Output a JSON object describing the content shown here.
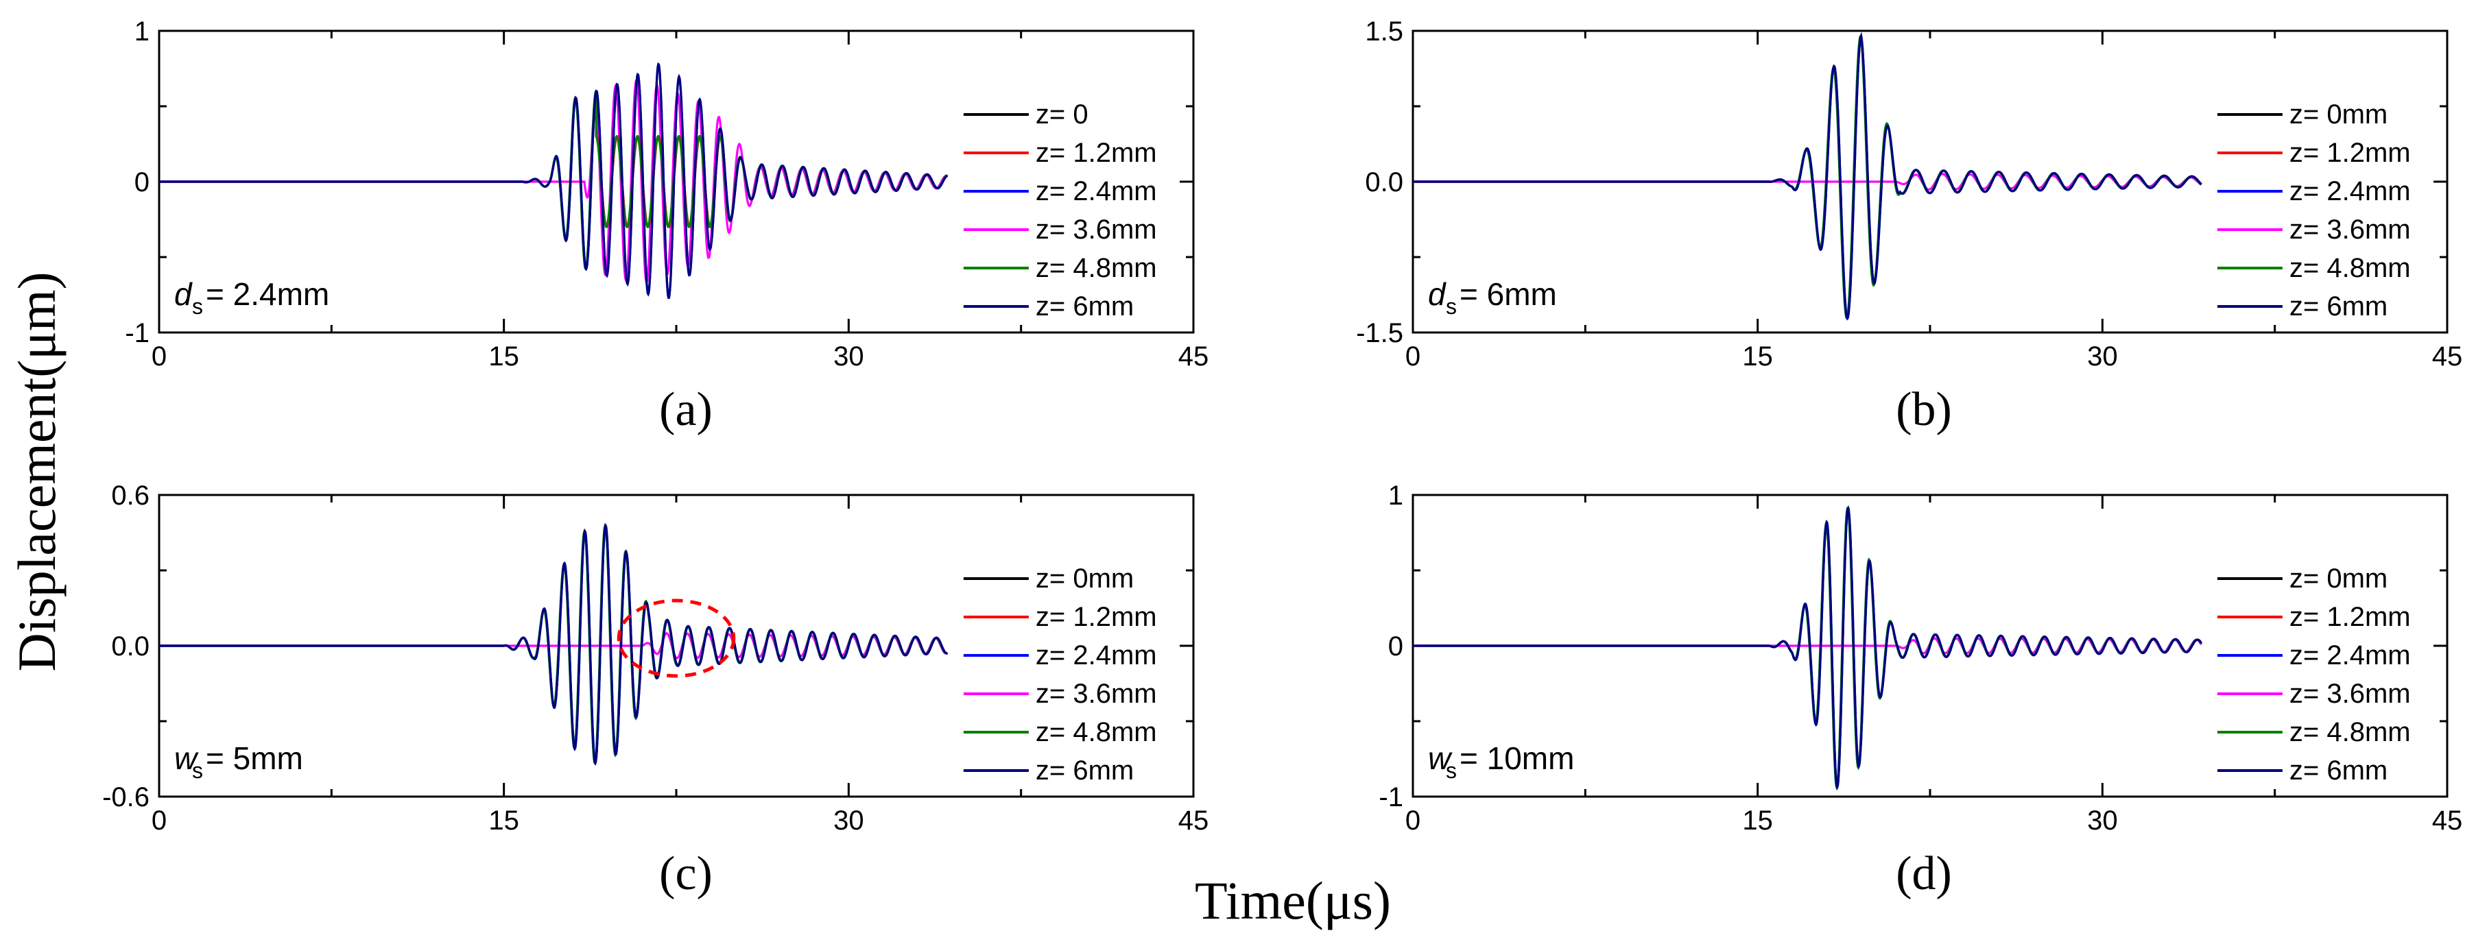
{
  "figure": {
    "ylabel": "Displacement(μm)",
    "xlabel": "Time(μs)"
  },
  "chart_data": [
    {
      "id": "a",
      "type": "line",
      "panel_label": "(a)",
      "param_symbol": "d",
      "param_sub": "s",
      "param_value": "= 2.4mm",
      "xlim": [
        0,
        45
      ],
      "ylim": [
        -1,
        1
      ],
      "xticks": [
        "0",
        "15",
        "30",
        "45"
      ],
      "yticks": [
        "-1",
        "0",
        "1"
      ],
      "legend_position": "right",
      "legend": [
        "z= 0",
        "z= 1.2mm",
        "z= 2.4mm",
        "z= 3.6mm",
        "z= 4.8mm",
        "z= 6mm"
      ],
      "series_colors": [
        "#000000",
        "#ff0000",
        "#0000ff",
        "#ff00ff",
        "#008000",
        "#000080"
      ],
      "wave": {
        "t0": 17.0,
        "t_end": 34.3,
        "period": 0.9,
        "peak": 0.8,
        "envelope": [
          [
            15.8,
            0.0
          ],
          [
            17.0,
            0.04
          ],
          [
            18.0,
            0.55
          ],
          [
            20.0,
            0.65
          ],
          [
            22.0,
            0.8
          ],
          [
            23.5,
            0.55
          ],
          [
            25.5,
            0.12
          ],
          [
            34.3,
            0.04
          ]
        ],
        "alt_amp": 0.68,
        "alt_env": [
          [
            18.5,
            0.0
          ],
          [
            19.0,
            0.6
          ],
          [
            21.0,
            0.68
          ],
          [
            24.0,
            0.5
          ],
          [
            26.0,
            0.1
          ],
          [
            34.3,
            0.04
          ]
        ],
        "alt_phase": 0.45,
        "mid_amp": 0.3
      }
    },
    {
      "id": "b",
      "type": "line",
      "panel_label": "(b)",
      "param_symbol": "d",
      "param_sub": "s",
      "param_value": "= 6mm",
      "xlim": [
        0,
        45
      ],
      "ylim": [
        -1.5,
        1.5
      ],
      "xticks": [
        "0",
        "15",
        "30",
        "45"
      ],
      "yticks": [
        "-1.5",
        "0.0",
        "1.5"
      ],
      "legend_position": "right",
      "legend": [
        "z= 0mm",
        "z= 1.2mm",
        "z= 2.4mm",
        "z= 3.6mm",
        "z= 4.8mm",
        "z= 6mm"
      ],
      "series_colors": [
        "#000000",
        "#ff0000",
        "#0000ff",
        "#ff00ff",
        "#008000",
        "#000080"
      ],
      "wave": {
        "t0": 16.8,
        "t_end": 34.3,
        "period": 1.2,
        "peak": 1.5,
        "envelope": [
          [
            15.5,
            0.0
          ],
          [
            16.5,
            0.05
          ],
          [
            17.5,
            0.5
          ],
          [
            18.5,
            1.3
          ],
          [
            19.5,
            1.45
          ],
          [
            20.5,
            0.7
          ],
          [
            21.2,
            0.12
          ],
          [
            34.3,
            0.05
          ]
        ],
        "alt_amp": 0.08,
        "alt_env": [
          [
            21.0,
            0.0
          ],
          [
            22.0,
            0.08
          ],
          [
            34.3,
            0.04
          ]
        ],
        "alt_phase": 0.3,
        "mid_amp": 0.05
      }
    },
    {
      "id": "c",
      "type": "line",
      "panel_label": "(c)",
      "param_symbol": "w",
      "param_sub": "s",
      "param_value": "= 5mm",
      "xlim": [
        0,
        45
      ],
      "ylim": [
        -0.6,
        0.6
      ],
      "xticks": [
        "0",
        "15",
        "30",
        "45"
      ],
      "yticks": [
        "-0.6",
        "0.0",
        "0.6"
      ],
      "legend_position": "right",
      "legend": [
        "z= 0mm",
        "z= 1.2mm",
        "z= 2.4mm",
        "z= 3.6mm",
        "z= 4.8mm",
        "z= 6mm"
      ],
      "series_colors": [
        "#000000",
        "#ff0000",
        "#0000ff",
        "#ff00ff",
        "#008000",
        "#000080"
      ],
      "annotation": {
        "shape": "dashed-ellipse",
        "color": "#ff0000",
        "center_x": 22.5,
        "center_y": 0.03,
        "rx": 2.5,
        "ry": 0.15
      },
      "wave": {
        "t0": 16.5,
        "t_end": 34.3,
        "period": 0.9,
        "peak": 0.48,
        "envelope": [
          [
            15.0,
            0.0
          ],
          [
            16.3,
            0.05
          ],
          [
            17.2,
            0.25
          ],
          [
            18.3,
            0.45
          ],
          [
            19.5,
            0.48
          ],
          [
            20.5,
            0.35
          ],
          [
            21.3,
            0.15
          ],
          [
            22.5,
            0.08
          ],
          [
            34.3,
            0.03
          ]
        ],
        "alt_amp": 0.05,
        "alt_env": [
          [
            21.0,
            0.0
          ],
          [
            22.0,
            0.05
          ],
          [
            34.3,
            0.03
          ]
        ],
        "alt_phase": 0.3,
        "mid_amp": 0.05
      }
    },
    {
      "id": "d",
      "type": "line",
      "panel_label": "(d)",
      "param_symbol": "w",
      "param_sub": "s",
      "param_value": "= 10mm",
      "xlim": [
        0,
        45
      ],
      "ylim": [
        -1,
        1
      ],
      "xticks": [
        "0",
        "15",
        "30",
        "45"
      ],
      "yticks": [
        "-1",
        "0",
        "1"
      ],
      "legend_position": "right",
      "legend": [
        "z= 0mm",
        "z= 1.2mm",
        "z= 2.4mm",
        "z= 3.6mm",
        "z= 4.8mm",
        "z= 6mm"
      ],
      "series_colors": [
        "#000000",
        "#ff0000",
        "#0000ff",
        "#ff00ff",
        "#008000",
        "#000080"
      ],
      "wave": {
        "t0": 16.8,
        "t_end": 34.3,
        "period": 0.95,
        "peak": 0.95,
        "envelope": [
          [
            15.5,
            0.0
          ],
          [
            16.5,
            0.05
          ],
          [
            17.3,
            0.38
          ],
          [
            18.2,
            0.95
          ],
          [
            19.2,
            0.9
          ],
          [
            20.2,
            0.4
          ],
          [
            21.0,
            0.08
          ],
          [
            34.3,
            0.04
          ]
        ],
        "alt_amp": 0.05,
        "alt_env": [
          [
            21.0,
            0.0
          ],
          [
            22.0,
            0.05
          ],
          [
            34.3,
            0.04
          ]
        ],
        "alt_phase": 0.3,
        "mid_amp": 0.04
      }
    }
  ]
}
